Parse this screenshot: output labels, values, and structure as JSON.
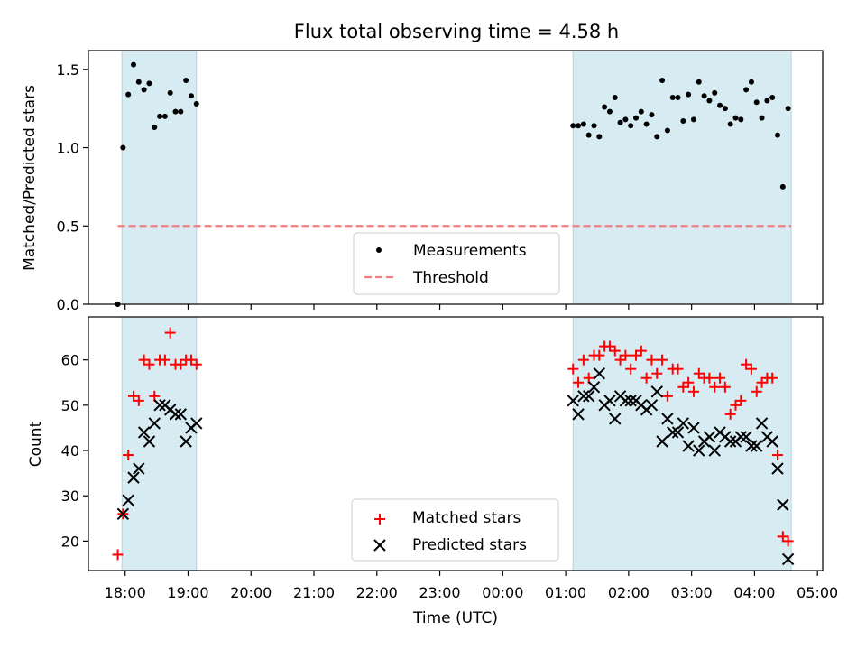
{
  "title": "Flux total observing time = 4.58 h",
  "colors": {
    "shade": "#add8e6",
    "threshold": "#f08080",
    "matched": "#ff0000",
    "predicted": "#000000",
    "measurement": "#000000"
  },
  "chart_data": [
    {
      "type": "scatter",
      "panel": "top",
      "ylabel": "Matched/Predicted stars",
      "ylim": [
        0,
        1.62
      ],
      "yticks": [
        0.0,
        0.5,
        1.0,
        1.5
      ],
      "ytick_labels": [
        "0.0",
        "0.5",
        "1.0",
        "1.5"
      ],
      "xlim": [
        "17:25",
        "05:05"
      ],
      "legend": "lower-center",
      "observing_windows": [
        [
          "17:57",
          "19:08"
        ],
        [
          "01:07",
          "04:35"
        ]
      ],
      "series": [
        {
          "name": "Measurements",
          "kind": "points",
          "points": [
            [
              "17:53",
              0.0
            ],
            [
              "17:58",
              1.0
            ],
            [
              "18:03",
              1.34
            ],
            [
              "18:08",
              1.53
            ],
            [
              "18:13",
              1.42
            ],
            [
              "18:18",
              1.37
            ],
            [
              "18:23",
              1.41
            ],
            [
              "18:28",
              1.13
            ],
            [
              "18:33",
              1.2
            ],
            [
              "18:38",
              1.2
            ],
            [
              "18:43",
              1.35
            ],
            [
              "18:48",
              1.23
            ],
            [
              "18:53",
              1.23
            ],
            [
              "18:58",
              1.43
            ],
            [
              "19:03",
              1.33
            ],
            [
              "19:08",
              1.28
            ],
            [
              "01:07",
              1.14
            ],
            [
              "01:12",
              1.14
            ],
            [
              "01:17",
              1.15
            ],
            [
              "01:22",
              1.08
            ],
            [
              "01:27",
              1.14
            ],
            [
              "01:32",
              1.07
            ],
            [
              "01:37",
              1.26
            ],
            [
              "01:42",
              1.23
            ],
            [
              "01:47",
              1.32
            ],
            [
              "01:52",
              1.16
            ],
            [
              "01:57",
              1.18
            ],
            [
              "02:02",
              1.14
            ],
            [
              "02:07",
              1.19
            ],
            [
              "02:12",
              1.23
            ],
            [
              "02:17",
              1.15
            ],
            [
              "02:22",
              1.21
            ],
            [
              "02:27",
              1.07
            ],
            [
              "02:32",
              1.43
            ],
            [
              "02:37",
              1.11
            ],
            [
              "02:42",
              1.32
            ],
            [
              "02:47",
              1.32
            ],
            [
              "02:52",
              1.17
            ],
            [
              "02:57",
              1.34
            ],
            [
              "03:02",
              1.18
            ],
            [
              "03:07",
              1.42
            ],
            [
              "03:12",
              1.33
            ],
            [
              "03:17",
              1.3
            ],
            [
              "03:22",
              1.35
            ],
            [
              "03:27",
              1.27
            ],
            [
              "03:32",
              1.25
            ],
            [
              "03:37",
              1.15
            ],
            [
              "03:42",
              1.19
            ],
            [
              "03:47",
              1.18
            ],
            [
              "03:52",
              1.37
            ],
            [
              "03:57",
              1.42
            ],
            [
              "04:02",
              1.29
            ],
            [
              "04:07",
              1.19
            ],
            [
              "04:12",
              1.3
            ],
            [
              "04:17",
              1.32
            ],
            [
              "04:22",
              1.08
            ],
            [
              "04:27",
              0.75
            ],
            [
              "04:32",
              1.25
            ]
          ]
        },
        {
          "name": "Threshold",
          "kind": "dashed-line",
          "points": [
            [
              "17:53",
              0.5
            ],
            [
              "04:35",
              0.5
            ]
          ]
        }
      ]
    },
    {
      "type": "scatter",
      "panel": "bottom",
      "xlabel": "Time (UTC)",
      "ylabel": "Count",
      "ylim": [
        13.5,
        69.5
      ],
      "yticks": [
        20,
        30,
        40,
        50,
        60
      ],
      "ytick_labels": [
        "20",
        "30",
        "40",
        "50",
        "60"
      ],
      "xlim": [
        "17:25",
        "05:05"
      ],
      "xticks": [
        "18:00",
        "19:00",
        "20:00",
        "21:00",
        "22:00",
        "23:00",
        "00:00",
        "01:00",
        "02:00",
        "03:00",
        "04:00",
        "05:00"
      ],
      "legend": "lower-center",
      "observing_windows": [
        [
          "17:57",
          "19:08"
        ],
        [
          "01:07",
          "04:35"
        ]
      ],
      "series": [
        {
          "name": "Matched stars",
          "kind": "plus-markers",
          "points": [
            [
              "17:53",
              17
            ],
            [
              "17:58",
              26
            ],
            [
              "18:03",
              39
            ],
            [
              "18:08",
              52
            ],
            [
              "18:13",
              51
            ],
            [
              "18:18",
              60
            ],
            [
              "18:23",
              59
            ],
            [
              "18:28",
              52
            ],
            [
              "18:33",
              60
            ],
            [
              "18:38",
              60
            ],
            [
              "18:43",
              66
            ],
            [
              "18:48",
              59
            ],
            [
              "18:53",
              59
            ],
            [
              "18:58",
              60
            ],
            [
              "19:03",
              60
            ],
            [
              "19:08",
              59
            ],
            [
              "01:07",
              58
            ],
            [
              "01:12",
              55
            ],
            [
              "01:17",
              60
            ],
            [
              "01:22",
              56
            ],
            [
              "01:27",
              61
            ],
            [
              "01:32",
              61
            ],
            [
              "01:37",
              63
            ],
            [
              "01:42",
              63
            ],
            [
              "01:47",
              62
            ],
            [
              "01:52",
              60
            ],
            [
              "01:57",
              61
            ],
            [
              "02:02",
              58
            ],
            [
              "02:07",
              61
            ],
            [
              "02:12",
              62
            ],
            [
              "02:17",
              56
            ],
            [
              "02:22",
              60
            ],
            [
              "02:27",
              57
            ],
            [
              "02:32",
              60
            ],
            [
              "02:37",
              52
            ],
            [
              "02:42",
              58
            ],
            [
              "02:47",
              58
            ],
            [
              "02:52",
              54
            ],
            [
              "02:57",
              55
            ],
            [
              "03:02",
              53
            ],
            [
              "03:07",
              57
            ],
            [
              "03:12",
              56
            ],
            [
              "03:17",
              56
            ],
            [
              "03:22",
              54
            ],
            [
              "03:27",
              56
            ],
            [
              "03:32",
              54
            ],
            [
              "03:37",
              48
            ],
            [
              "03:42",
              50
            ],
            [
              "03:47",
              51
            ],
            [
              "03:52",
              59
            ],
            [
              "03:57",
              58
            ],
            [
              "04:02",
              53
            ],
            [
              "04:07",
              55
            ],
            [
              "04:12",
              56
            ],
            [
              "04:17",
              56
            ],
            [
              "04:22",
              39
            ],
            [
              "04:27",
              21
            ],
            [
              "04:32",
              20
            ]
          ]
        },
        {
          "name": "Predicted stars",
          "kind": "x-markers",
          "points": [
            [
              "17:58",
              26
            ],
            [
              "18:03",
              29
            ],
            [
              "18:08",
              34
            ],
            [
              "18:13",
              36
            ],
            [
              "18:18",
              44
            ],
            [
              "18:23",
              42
            ],
            [
              "18:28",
              46
            ],
            [
              "18:33",
              50
            ],
            [
              "18:38",
              50
            ],
            [
              "18:43",
              49
            ],
            [
              "18:48",
              48
            ],
            [
              "18:53",
              48
            ],
            [
              "18:58",
              42
            ],
            [
              "19:03",
              45
            ],
            [
              "19:08",
              46
            ],
            [
              "01:07",
              51
            ],
            [
              "01:12",
              48
            ],
            [
              "01:17",
              52
            ],
            [
              "01:22",
              52
            ],
            [
              "01:27",
              54
            ],
            [
              "01:32",
              57
            ],
            [
              "01:37",
              50
            ],
            [
              "01:42",
              51
            ],
            [
              "01:47",
              47
            ],
            [
              "01:52",
              52
            ],
            [
              "01:57",
              51
            ],
            [
              "02:02",
              51
            ],
            [
              "02:07",
              51
            ],
            [
              "02:12",
              50
            ],
            [
              "02:17",
              49
            ],
            [
              "02:22",
              50
            ],
            [
              "02:27",
              53
            ],
            [
              "02:32",
              42
            ],
            [
              "02:37",
              47
            ],
            [
              "02:42",
              44
            ],
            [
              "02:47",
              44
            ],
            [
              "02:52",
              46
            ],
            [
              "02:57",
              41
            ],
            [
              "03:02",
              45
            ],
            [
              "03:07",
              40
            ],
            [
              "03:12",
              42
            ],
            [
              "03:17",
              43
            ],
            [
              "03:22",
              40
            ],
            [
              "03:27",
              44
            ],
            [
              "03:32",
              43
            ],
            [
              "03:37",
              42
            ],
            [
              "03:42",
              42
            ],
            [
              "03:47",
              43
            ],
            [
              "03:52",
              43
            ],
            [
              "03:57",
              41
            ],
            [
              "04:02",
              41
            ],
            [
              "04:07",
              46
            ],
            [
              "04:12",
              43
            ],
            [
              "04:17",
              42
            ],
            [
              "04:22",
              36
            ],
            [
              "04:27",
              28
            ],
            [
              "04:32",
              16
            ]
          ]
        }
      ]
    }
  ]
}
